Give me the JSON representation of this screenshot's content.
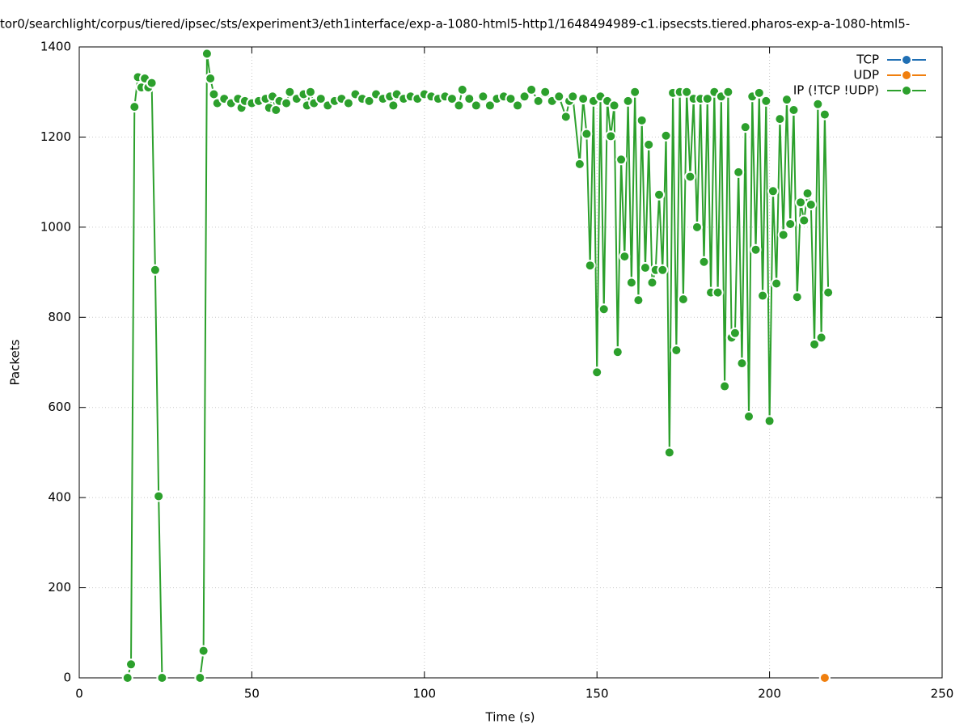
{
  "chart_data": {
    "type": "line",
    "title": "tor0/searchlight/corpus/tiered/ipsec/sts/experiment3/eth1interface/exp-a-1080-html5-http1/1648494989-c1.ipsecsts.tiered.pharos-exp-a-1080-html5-",
    "x_label": "Time (s)",
    "y_label": "Packets",
    "xlim": [
      0,
      250
    ],
    "xticks": [
      0,
      50,
      100,
      150,
      200,
      250
    ],
    "ylim": [
      0,
      1400
    ],
    "yticks": [
      0,
      200,
      400,
      600,
      800,
      1000,
      1200,
      1400
    ],
    "grid": true,
    "legend": "top-right",
    "series": [
      {
        "name": "TCP",
        "color": "#1f6fb4",
        "x": [
          216
        ],
        "values": [
          0
        ]
      },
      {
        "name": "UDP",
        "color": "#f07f0e",
        "x": [
          216
        ],
        "values": [
          0
        ]
      },
      {
        "name": "IP (!TCP  !UDP)",
        "color": "#2ca02c",
        "x": [
          14,
          15,
          16,
          17,
          18,
          19,
          20,
          21,
          22,
          23,
          24,
          30,
          35,
          36,
          37,
          38,
          39,
          40,
          42,
          44,
          46,
          47,
          48,
          50,
          52,
          54,
          55,
          56,
          57,
          58,
          60,
          61,
          63,
          65,
          66,
          67,
          68,
          70,
          72,
          74,
          76,
          78,
          80,
          82,
          84,
          86,
          88,
          90,
          91,
          92,
          94,
          96,
          98,
          100,
          102,
          104,
          106,
          108,
          110,
          111,
          113,
          115,
          117,
          119,
          121,
          123,
          125,
          127,
          129,
          131,
          133,
          135,
          137,
          139,
          141,
          142,
          143,
          145,
          146,
          147,
          148,
          149,
          150,
          151,
          152,
          153,
          154,
          155,
          156,
          157,
          158,
          159,
          160,
          161,
          162,
          163,
          164,
          165,
          166,
          167,
          168,
          169,
          170,
          171,
          172,
          173,
          174,
          175,
          176,
          177,
          178,
          179,
          180,
          181,
          182,
          183,
          184,
          185,
          186,
          187,
          188,
          189,
          190,
          191,
          192,
          193,
          194,
          195,
          196,
          197,
          198,
          199,
          200,
          201,
          202,
          203,
          204,
          205,
          206,
          207,
          208,
          209,
          210,
          211,
          212,
          213,
          214,
          215,
          216,
          217
        ],
        "values": [
          0,
          30,
          1267,
          1333,
          1310,
          1330,
          1310,
          1320,
          905,
          403,
          0,
          null,
          0,
          60,
          1385,
          1330,
          1295,
          1275,
          1285,
          1275,
          1285,
          1265,
          1280,
          1275,
          1280,
          1285,
          1265,
          1290,
          1260,
          1280,
          1275,
          1300,
          1285,
          1295,
          1270,
          1300,
          1275,
          1285,
          1270,
          1280,
          1285,
          1275,
          1295,
          1285,
          1280,
          1295,
          1285,
          1290,
          1270,
          1295,
          1285,
          1290,
          1285,
          1295,
          1290,
          1285,
          1290,
          1285,
          1270,
          1305,
          1285,
          1270,
          1290,
          1270,
          1285,
          1290,
          1285,
          1270,
          1290,
          1305,
          1280,
          1300,
          1280,
          1290,
          1245,
          1280,
          1290,
          1140,
          1285,
          1207,
          915,
          1280,
          678,
          1290,
          818,
          1280,
          1202,
          1270,
          723,
          1150,
          935,
          1280,
          877,
          1300,
          838,
          1237,
          910,
          1183,
          877,
          905,
          1072,
          905,
          1203,
          500,
          1298,
          727,
          1300,
          840,
          1300,
          1112,
          1285,
          1000,
          1285,
          923,
          1285,
          855,
          1300,
          855,
          1290,
          647,
          1300,
          755,
          765,
          1122,
          698,
          1222,
          580,
          1290,
          950,
          1298,
          848,
          1280,
          570,
          1080,
          875,
          1240,
          983,
          1283,
          1007,
          1260,
          845,
          1055,
          1015,
          1075,
          1050,
          740,
          1273,
          755,
          1250,
          855
        ]
      }
    ]
  }
}
